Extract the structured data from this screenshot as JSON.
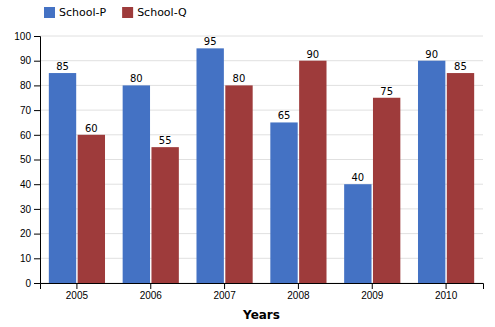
{
  "chart_data": {
    "type": "bar",
    "xlabel": "Years",
    "categories": [
      "2005",
      "2006",
      "2007",
      "2008",
      "2009",
      "2010"
    ],
    "series": [
      {
        "name": "School-P",
        "color": "#4472C4",
        "values": [
          85,
          80,
          95,
          65,
          40,
          90
        ]
      },
      {
        "name": "School-Q",
        "color": "#9E3B3B",
        "values": [
          60,
          55,
          80,
          90,
          75,
          85
        ]
      }
    ],
    "ylim": [
      0,
      100
    ],
    "yticks": [
      0,
      10,
      20,
      30,
      40,
      50,
      60,
      70,
      80,
      90,
      100
    ],
    "grid": true,
    "legend": "upper left",
    "data_labels": true
  }
}
